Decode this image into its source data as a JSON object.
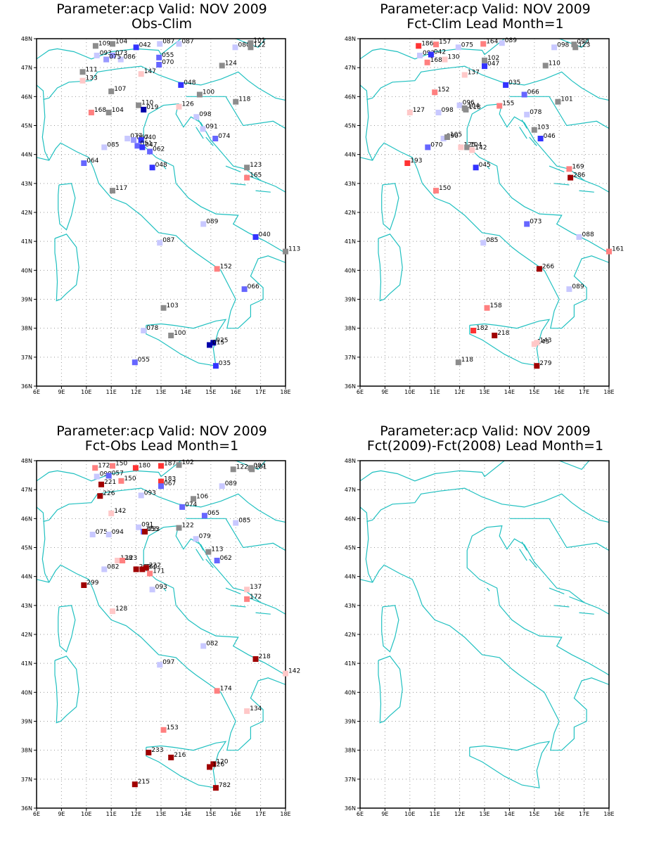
{
  "colors": {
    "coast": "#20c0c0",
    "grid": "#9a9a9a",
    "frame": "#000000"
  },
  "axes": {
    "x_ticks": [
      "6E",
      "9E",
      "10E",
      "11E",
      "12E",
      "13E",
      "14E",
      "15E",
      "16E",
      "17E",
      "18E"
    ],
    "y_ticks": [
      "36N",
      "37N",
      "38N",
      "39N",
      "40N",
      "41N",
      "42N",
      "43N",
      "44N",
      "45N",
      "46N",
      "47N",
      "48N"
    ]
  },
  "panels": [
    {
      "title": "Parameter:acp Valid: NOV 2009",
      "subtitle": "Obs-Clim",
      "stations": [
        {
          "lon": 10.37,
          "lat": 47.75,
          "v": "109",
          "c": "#8c8c8c"
        },
        {
          "lon": 11.05,
          "lat": 47.82,
          "v": "104",
          "c": "#8c8c8c"
        },
        {
          "lon": 12.0,
          "lat": 47.7,
          "v": "042",
          "c": "#3333ff"
        },
        {
          "lon": 12.95,
          "lat": 47.82,
          "v": "087",
          "c": "#c8c8ff"
        },
        {
          "lon": 13.72,
          "lat": 47.82,
          "v": "087",
          "c": "#c8c8ff"
        },
        {
          "lon": 10.42,
          "lat": 47.42,
          "v": "093",
          "c": "#c8c8ff"
        },
        {
          "lon": 11.05,
          "lat": 47.42,
          "v": "073",
          "c": "#9999ff"
        },
        {
          "lon": 11.38,
          "lat": 47.28,
          "v": "086",
          "c": "#c8c8ff"
        },
        {
          "lon": 10.8,
          "lat": 47.28,
          "v": "075",
          "c": "#9999ff"
        },
        {
          "lon": 12.92,
          "lat": 47.35,
          "v": "055",
          "c": "#6666ff"
        },
        {
          "lon": 12.92,
          "lat": 47.1,
          "v": "070",
          "c": "#6666ff"
        },
        {
          "lon": 15.98,
          "lat": 47.7,
          "v": "080",
          "c": "#c8c8ff"
        },
        {
          "lon": 16.6,
          "lat": 47.85,
          "v": "101",
          "c": "#8c8c8c"
        },
        {
          "lon": 16.6,
          "lat": 47.7,
          "v": "122",
          "c": "#8c8c8c"
        },
        {
          "lon": 9.85,
          "lat": 46.85,
          "v": "111",
          "c": "#8c8c8c"
        },
        {
          "lon": 9.85,
          "lat": 46.55,
          "v": "133",
          "c": "#ffc8c8"
        },
        {
          "lon": 12.2,
          "lat": 46.78,
          "v": "147",
          "c": "#ffc8c8"
        },
        {
          "lon": 15.45,
          "lat": 47.07,
          "v": "124",
          "c": "#8c8c8c"
        },
        {
          "lon": 11.0,
          "lat": 46.18,
          "v": "107",
          "c": "#8c8c8c"
        },
        {
          "lon": 13.8,
          "lat": 46.4,
          "v": "048",
          "c": "#3333ff"
        },
        {
          "lon": 14.55,
          "lat": 46.07,
          "v": "100",
          "c": "#8c8c8c"
        },
        {
          "lon": 16.0,
          "lat": 45.82,
          "v": "118",
          "c": "#8c8c8c"
        },
        {
          "lon": 12.1,
          "lat": 45.7,
          "v": "110",
          "c": "#8c8c8c"
        },
        {
          "lon": 13.72,
          "lat": 45.65,
          "v": "126",
          "c": "#ffc8c8"
        },
        {
          "lon": 10.2,
          "lat": 45.45,
          "v": "168",
          "c": "#ff8080"
        },
        {
          "lon": 10.9,
          "lat": 45.45,
          "v": "104",
          "c": "#8c8c8c"
        },
        {
          "lon": 12.3,
          "lat": 45.55,
          "v": "019",
          "c": "#0000aa"
        },
        {
          "lon": 14.42,
          "lat": 45.3,
          "v": "098",
          "c": "#c8c8ff"
        },
        {
          "lon": 14.68,
          "lat": 44.88,
          "v": "091",
          "c": "#c8c8ff"
        },
        {
          "lon": 15.18,
          "lat": 44.55,
          "v": "074",
          "c": "#6666ff"
        },
        {
          "lon": 11.65,
          "lat": 44.55,
          "v": "077",
          "c": "#c8c8ff"
        },
        {
          "lon": 11.9,
          "lat": 44.5,
          "v": "067",
          "c": "#9999ff"
        },
        {
          "lon": 12.2,
          "lat": 44.5,
          "v": "040",
          "c": "#3333ff"
        },
        {
          "lon": 12.05,
          "lat": 44.3,
          "v": "051",
          "c": "#6666ff"
        },
        {
          "lon": 12.25,
          "lat": 44.25,
          "v": "047",
          "c": "#3333ff"
        },
        {
          "lon": 12.55,
          "lat": 44.1,
          "v": "062",
          "c": "#6666ff"
        },
        {
          "lon": 10.72,
          "lat": 44.25,
          "v": "085",
          "c": "#c8c8ff"
        },
        {
          "lon": 9.9,
          "lat": 43.7,
          "v": "064",
          "c": "#6666ff"
        },
        {
          "lon": 12.65,
          "lat": 43.55,
          "v": "048",
          "c": "#3333ff"
        },
        {
          "lon": 16.45,
          "lat": 43.55,
          "v": "123",
          "c": "#8c8c8c"
        },
        {
          "lon": 16.45,
          "lat": 43.2,
          "v": "165",
          "c": "#ff8080"
        },
        {
          "lon": 11.05,
          "lat": 42.75,
          "v": "117",
          "c": "#8c8c8c"
        },
        {
          "lon": 14.7,
          "lat": 41.6,
          "v": "089",
          "c": "#c8c8ff"
        },
        {
          "lon": 16.8,
          "lat": 41.15,
          "v": "040",
          "c": "#3333ff"
        },
        {
          "lon": 18.0,
          "lat": 40.65,
          "v": "113",
          "c": "#8c8c8c"
        },
        {
          "lon": 12.95,
          "lat": 40.95,
          "v": "087",
          "c": "#c8c8ff"
        },
        {
          "lon": 15.25,
          "lat": 40.05,
          "v": "152",
          "c": "#ff8080"
        },
        {
          "lon": 16.35,
          "lat": 39.35,
          "v": "066",
          "c": "#6666ff"
        },
        {
          "lon": 13.1,
          "lat": 38.7,
          "v": "103",
          "c": "#8c8c8c"
        },
        {
          "lon": 12.3,
          "lat": 37.92,
          "v": "078",
          "c": "#c8c8ff"
        },
        {
          "lon": 13.4,
          "lat": 37.75,
          "v": "100",
          "c": "#8c8c8c"
        },
        {
          "lon": 15.1,
          "lat": 37.5,
          "v": "025",
          "c": "#0000aa"
        },
        {
          "lon": 14.95,
          "lat": 37.42,
          "v": "015",
          "c": "#0000aa"
        },
        {
          "lon": 11.95,
          "lat": 36.82,
          "v": "055",
          "c": "#6666ff"
        },
        {
          "lon": 15.2,
          "lat": 36.7,
          "v": "035",
          "c": "#3333ff"
        }
      ]
    },
    {
      "title": "Parameter:acp Valid: NOV 2009",
      "subtitle": "Fct-Clim Lead Month=1",
      "stations": [
        {
          "lon": 10.35,
          "lat": 47.75,
          "v": "186",
          "c": "#ff3333"
        },
        {
          "lon": 11.05,
          "lat": 47.8,
          "v": "157",
          "c": "#ff8080"
        },
        {
          "lon": 11.95,
          "lat": 47.7,
          "v": "075",
          "c": "#c8c8ff"
        },
        {
          "lon": 12.95,
          "lat": 47.82,
          "v": "164",
          "c": "#ff8080"
        },
        {
          "lon": 13.7,
          "lat": 47.85,
          "v": "089",
          "c": "#c8c8ff"
        },
        {
          "lon": 10.4,
          "lat": 47.42,
          "v": "092",
          "c": "#c8c8ff"
        },
        {
          "lon": 10.85,
          "lat": 47.45,
          "v": "042",
          "c": "#3333ff"
        },
        {
          "lon": 11.4,
          "lat": 47.28,
          "v": "130",
          "c": "#ffc8c8"
        },
        {
          "lon": 10.7,
          "lat": 47.18,
          "v": "168",
          "c": "#ff8080"
        },
        {
          "lon": 13.0,
          "lat": 47.25,
          "v": "102",
          "c": "#8c8c8c"
        },
        {
          "lon": 13.0,
          "lat": 47.05,
          "v": "047",
          "c": "#3333ff"
        },
        {
          "lon": 15.8,
          "lat": 47.7,
          "v": "098",
          "c": "#c8c8ff"
        },
        {
          "lon": 16.6,
          "lat": 47.8,
          "v": "090",
          "c": "#8c8c8c"
        },
        {
          "lon": 16.65,
          "lat": 47.7,
          "v": "123",
          "c": "#8c8c8c"
        },
        {
          "lon": 15.45,
          "lat": 47.07,
          "v": "110",
          "c": "#8c8c8c"
        },
        {
          "lon": 12.2,
          "lat": 46.75,
          "v": "137",
          "c": "#ffc8c8"
        },
        {
          "lon": 13.85,
          "lat": 46.4,
          "v": "035",
          "c": "#3333ff"
        },
        {
          "lon": 11.0,
          "lat": 46.15,
          "v": "152",
          "c": "#ff8080"
        },
        {
          "lon": 14.6,
          "lat": 46.07,
          "v": "066",
          "c": "#6666ff"
        },
        {
          "lon": 15.95,
          "lat": 45.82,
          "v": "101",
          "c": "#8c8c8c"
        },
        {
          "lon": 12.0,
          "lat": 45.7,
          "v": "096",
          "c": "#c8c8ff"
        },
        {
          "lon": 12.2,
          "lat": 45.6,
          "v": "104",
          "c": "#8c8c8c"
        },
        {
          "lon": 13.6,
          "lat": 45.68,
          "v": "155",
          "c": "#ff8080"
        },
        {
          "lon": 12.25,
          "lat": 45.55,
          "v": "118",
          "c": "#8c8c8c"
        },
        {
          "lon": 10.0,
          "lat": 45.45,
          "v": "127",
          "c": "#ffc8c8"
        },
        {
          "lon": 11.15,
          "lat": 45.45,
          "v": "098",
          "c": "#c8c8ff"
        },
        {
          "lon": 14.7,
          "lat": 45.38,
          "v": "078",
          "c": "#c8c8ff"
        },
        {
          "lon": 15.0,
          "lat": 44.85,
          "v": "103",
          "c": "#8c8c8c"
        },
        {
          "lon": 15.25,
          "lat": 44.55,
          "v": "046",
          "c": "#3333ff"
        },
        {
          "lon": 11.35,
          "lat": 44.55,
          "v": "090",
          "c": "#c8c8ff"
        },
        {
          "lon": 11.5,
          "lat": 44.6,
          "v": "105",
          "c": "#8c8c8c"
        },
        {
          "lon": 10.72,
          "lat": 44.25,
          "v": "070",
          "c": "#6666ff"
        },
        {
          "lon": 12.05,
          "lat": 44.25,
          "v": "125",
          "c": "#ffc8c8"
        },
        {
          "lon": 12.3,
          "lat": 44.25,
          "v": "104",
          "c": "#8c8c8c"
        },
        {
          "lon": 12.5,
          "lat": 44.15,
          "v": "142",
          "c": "#ffc8c8"
        },
        {
          "lon": 9.9,
          "lat": 43.7,
          "v": "193",
          "c": "#ff3333"
        },
        {
          "lon": 12.65,
          "lat": 43.55,
          "v": "045",
          "c": "#3333ff"
        },
        {
          "lon": 16.4,
          "lat": 43.5,
          "v": "169",
          "c": "#ff8080"
        },
        {
          "lon": 16.45,
          "lat": 43.2,
          "v": "286",
          "c": "#a00000"
        },
        {
          "lon": 11.05,
          "lat": 42.75,
          "v": "150",
          "c": "#ff8080"
        },
        {
          "lon": 14.7,
          "lat": 41.6,
          "v": "073",
          "c": "#6666ff"
        },
        {
          "lon": 16.8,
          "lat": 41.15,
          "v": "088",
          "c": "#c8c8ff"
        },
        {
          "lon": 18.0,
          "lat": 40.65,
          "v": "161",
          "c": "#ff8080"
        },
        {
          "lon": 12.95,
          "lat": 40.95,
          "v": "085",
          "c": "#c8c8ff"
        },
        {
          "lon": 15.2,
          "lat": 40.05,
          "v": "266",
          "c": "#a00000"
        },
        {
          "lon": 16.4,
          "lat": 39.35,
          "v": "089",
          "c": "#c8c8ff"
        },
        {
          "lon": 13.1,
          "lat": 38.7,
          "v": "158",
          "c": "#ff8080"
        },
        {
          "lon": 12.55,
          "lat": 37.92,
          "v": "182",
          "c": "#ff3333"
        },
        {
          "lon": 13.4,
          "lat": 37.75,
          "v": "218",
          "c": "#a00000"
        },
        {
          "lon": 15.0,
          "lat": 37.45,
          "v": "143",
          "c": "#ffc8c8"
        },
        {
          "lon": 15.1,
          "lat": 37.5,
          "v": "143",
          "c": "#ffc8c8"
        },
        {
          "lon": 11.95,
          "lat": 36.82,
          "v": "118",
          "c": "#8c8c8c"
        },
        {
          "lon": 15.1,
          "lat": 36.7,
          "v": "279",
          "c": "#a00000"
        }
      ]
    },
    {
      "title": "Parameter:acp Valid: NOV 2009",
      "subtitle": "Fct-Obs Lead Month=1",
      "stations": [
        {
          "lon": 10.35,
          "lat": 47.75,
          "v": "172",
          "c": "#ff8080"
        },
        {
          "lon": 11.05,
          "lat": 47.82,
          "v": "150",
          "c": "#ff8080"
        },
        {
          "lon": 11.98,
          "lat": 47.75,
          "v": "180",
          "c": "#ff3333"
        },
        {
          "lon": 13.0,
          "lat": 47.82,
          "v": "187",
          "c": "#ff3333"
        },
        {
          "lon": 13.72,
          "lat": 47.85,
          "v": "102",
          "c": "#8c8c8c"
        },
        {
          "lon": 10.42,
          "lat": 47.45,
          "v": "099",
          "c": "#c8c8ff"
        },
        {
          "lon": 10.9,
          "lat": 47.48,
          "v": "057",
          "c": "#6666ff"
        },
        {
          "lon": 11.4,
          "lat": 47.3,
          "v": "150",
          "c": "#ff8080"
        },
        {
          "lon": 10.6,
          "lat": 47.18,
          "v": "221",
          "c": "#a00000"
        },
        {
          "lon": 13.0,
          "lat": 47.28,
          "v": "183",
          "c": "#ff3333"
        },
        {
          "lon": 13.0,
          "lat": 47.12,
          "v": "067",
          "c": "#6666ff"
        },
        {
          "lon": 15.9,
          "lat": 47.7,
          "v": "122",
          "c": "#8c8c8c"
        },
        {
          "lon": 16.6,
          "lat": 47.75,
          "v": "083",
          "c": "#8c8c8c"
        },
        {
          "lon": 16.65,
          "lat": 47.7,
          "v": "101",
          "c": "#8c8c8c"
        },
        {
          "lon": 15.45,
          "lat": 47.12,
          "v": "089",
          "c": "#c8c8ff"
        },
        {
          "lon": 10.55,
          "lat": 46.78,
          "v": "226",
          "c": "#a00000"
        },
        {
          "lon": 12.2,
          "lat": 46.8,
          "v": "093",
          "c": "#c8c8ff"
        },
        {
          "lon": 14.3,
          "lat": 46.68,
          "v": "106",
          "c": "#8c8c8c"
        },
        {
          "lon": 13.85,
          "lat": 46.4,
          "v": "074",
          "c": "#6666ff"
        },
        {
          "lon": 11.0,
          "lat": 46.18,
          "v": "142",
          "c": "#ffc8c8"
        },
        {
          "lon": 14.75,
          "lat": 46.1,
          "v": "065",
          "c": "#6666ff"
        },
        {
          "lon": 16.0,
          "lat": 45.85,
          "v": "085",
          "c": "#c8c8ff"
        },
        {
          "lon": 12.1,
          "lat": 45.7,
          "v": "091",
          "c": "#c8c8ff"
        },
        {
          "lon": 12.3,
          "lat": 45.55,
          "v": "055",
          "c": "#6666ff"
        },
        {
          "lon": 12.35,
          "lat": 45.55,
          "v": "053",
          "c": "#a00000"
        },
        {
          "lon": 13.72,
          "lat": 45.68,
          "v": "122",
          "c": "#8c8c8c"
        },
        {
          "lon": 10.25,
          "lat": 45.45,
          "v": "075",
          "c": "#c8c8ff"
        },
        {
          "lon": 10.9,
          "lat": 45.45,
          "v": "094",
          "c": "#c8c8ff"
        },
        {
          "lon": 14.4,
          "lat": 45.3,
          "v": "079",
          "c": "#c8c8ff"
        },
        {
          "lon": 14.9,
          "lat": 44.85,
          "v": "113",
          "c": "#8c8c8c"
        },
        {
          "lon": 15.25,
          "lat": 44.55,
          "v": "062",
          "c": "#6666ff"
        },
        {
          "lon": 11.25,
          "lat": 44.55,
          "v": "128",
          "c": "#ffc8c8"
        },
        {
          "lon": 11.45,
          "lat": 44.55,
          "v": "123",
          "c": "#ff8080"
        },
        {
          "lon": 10.72,
          "lat": 44.25,
          "v": "082",
          "c": "#c8c8ff"
        },
        {
          "lon": 12.0,
          "lat": 44.25,
          "v": "202",
          "c": "#a00000"
        },
        {
          "lon": 12.25,
          "lat": 44.25,
          "v": "260",
          "c": "#a00000"
        },
        {
          "lon": 12.4,
          "lat": 44.3,
          "v": "222",
          "c": "#a00000"
        },
        {
          "lon": 12.55,
          "lat": 44.1,
          "v": "171",
          "c": "#ff8080"
        },
        {
          "lon": 9.9,
          "lat": 43.7,
          "v": "299",
          "c": "#a00000"
        },
        {
          "lon": 12.65,
          "lat": 43.55,
          "v": "093",
          "c": "#c8c8ff"
        },
        {
          "lon": 16.45,
          "lat": 43.55,
          "v": "137",
          "c": "#ffc8c8"
        },
        {
          "lon": 16.45,
          "lat": 43.22,
          "v": "172",
          "c": "#ff8080"
        },
        {
          "lon": 11.05,
          "lat": 42.8,
          "v": "128",
          "c": "#ffc8c8"
        },
        {
          "lon": 14.7,
          "lat": 41.6,
          "v": "082",
          "c": "#c8c8ff"
        },
        {
          "lon": 16.8,
          "lat": 41.15,
          "v": "218",
          "c": "#a00000"
        },
        {
          "lon": 18.0,
          "lat": 40.65,
          "v": "142",
          "c": "#ffc8c8"
        },
        {
          "lon": 12.95,
          "lat": 40.95,
          "v": "097",
          "c": "#c8c8ff"
        },
        {
          "lon": 15.25,
          "lat": 40.05,
          "v": "174",
          "c": "#ff8080"
        },
        {
          "lon": 16.45,
          "lat": 39.35,
          "v": "134",
          "c": "#ffc8c8"
        },
        {
          "lon": 13.1,
          "lat": 38.7,
          "v": "153",
          "c": "#ff8080"
        },
        {
          "lon": 12.5,
          "lat": 37.92,
          "v": "233",
          "c": "#a00000"
        },
        {
          "lon": 13.4,
          "lat": 37.75,
          "v": "216",
          "c": "#a00000"
        },
        {
          "lon": 15.1,
          "lat": 37.52,
          "v": "120",
          "c": "#a00000"
        },
        {
          "lon": 14.95,
          "lat": 37.42,
          "v": "126",
          "c": "#a00000"
        },
        {
          "lon": 11.95,
          "lat": 36.82,
          "v": "215",
          "c": "#a00000"
        },
        {
          "lon": 15.2,
          "lat": 36.7,
          "v": "782",
          "c": "#a00000"
        }
      ]
    },
    {
      "title": "Parameter:acp Valid: NOV 2009",
      "subtitle": "Fct(2009)-Fct(2008) Lead Month=1",
      "stations": []
    }
  ]
}
